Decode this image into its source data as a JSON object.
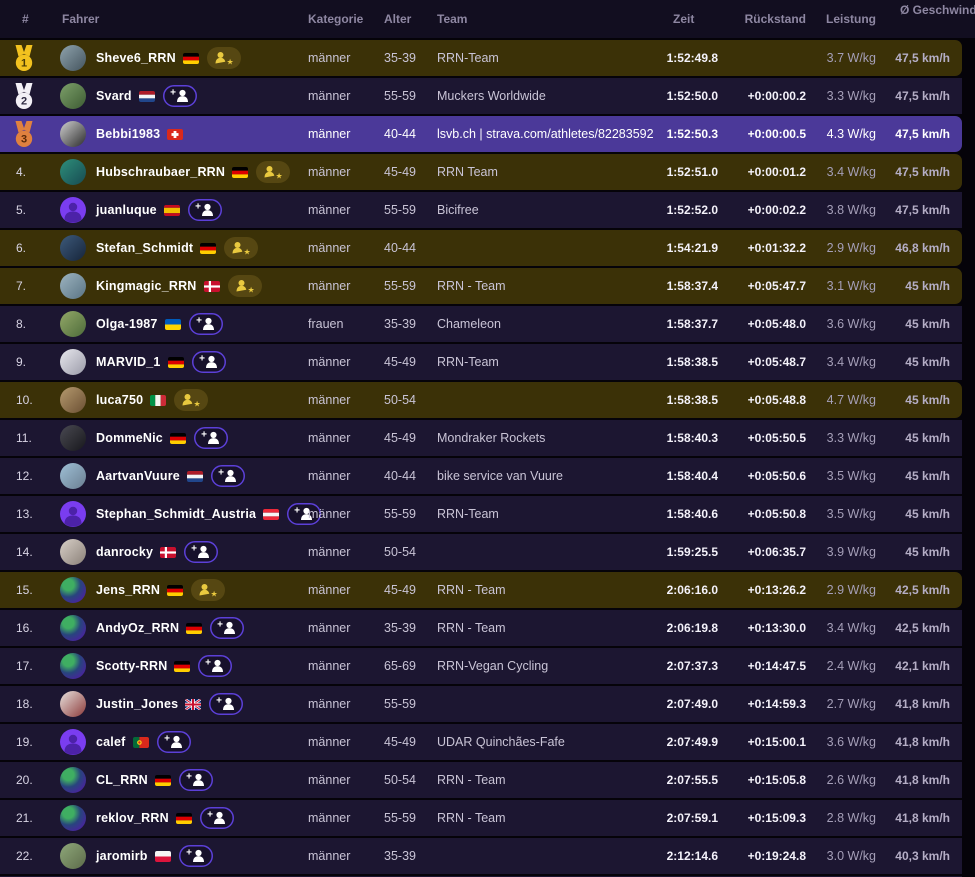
{
  "colors": {
    "accent_purple": "#5c40d8",
    "row_default": "#1c1631",
    "row_followed": "#3b3107",
    "row_self": "#4b3999",
    "badge_gold": "#e9c93f",
    "badge_gold_bg": "#564712",
    "medal_gold": "#f2c21f",
    "medal_silver": "#f2f0f6",
    "medal_bronze": "#e0813f",
    "default_avatar": "#7a3df0"
  },
  "table": {
    "columns": [
      {
        "key": "rank",
        "label": "#"
      },
      {
        "key": "fahrer",
        "label": "Fahrer"
      },
      {
        "key": "kategorie",
        "label": "Kategorie"
      },
      {
        "key": "alter",
        "label": "Alter"
      },
      {
        "key": "team",
        "label": "Team"
      },
      {
        "key": "zeit",
        "label": "Zeit"
      },
      {
        "key": "rueckstand",
        "label": "Rückstand"
      },
      {
        "key": "leistung",
        "label": "Leistung"
      },
      {
        "key": "geschwindigkeit",
        "label": "Ø Geschwindigkeit"
      }
    ],
    "rows": [
      {
        "rank_display": "1",
        "medal": "gold",
        "name": "Sheve6_RRN",
        "flag": "de",
        "badge": "following",
        "avatar": {
          "type": "photo",
          "c1": "#8fa3ad",
          "c2": "#44545e"
        },
        "kategorie": "männer",
        "alter": "35-39",
        "team": "RRN-Team",
        "zeit": "1:52:49.8",
        "rueckstand": "",
        "leistung": "3.7 W/kg",
        "geschwindigkeit": "47,5 km/h",
        "highlight": "followed"
      },
      {
        "rank_display": "2",
        "medal": "silver",
        "name": "Svard",
        "flag": "nl",
        "badge": "add",
        "avatar": {
          "type": "photo",
          "c1": "#7da06a",
          "c2": "#3d5c33"
        },
        "kategorie": "männer",
        "alter": "55-59",
        "team": "Muckers Worldwide",
        "zeit": "1:52:50.0",
        "rueckstand": "+0:00:00.2",
        "leistung": "3.3 W/kg",
        "geschwindigkeit": "47,5 km/h",
        "highlight": "none"
      },
      {
        "rank_display": "3",
        "medal": "bronze",
        "name": "Bebbi1983",
        "flag": "ch",
        "badge": "none",
        "avatar": {
          "type": "photo",
          "c1": "#cfcfcf",
          "c2": "#2b2b2b"
        },
        "kategorie": "männer",
        "alter": "40-44",
        "team": "lsvb.ch | strava.com/athletes/82283592",
        "zeit": "1:52:50.3",
        "rueckstand": "+0:00:00.5",
        "leistung": "4.3 W/kg",
        "geschwindigkeit": "47,5 km/h",
        "highlight": "self"
      },
      {
        "rank_display": "4.",
        "medal": null,
        "name": "Hubschraubaer_RRN",
        "flag": "de",
        "badge": "following",
        "avatar": {
          "type": "photo",
          "c1": "#2e8f7a",
          "c2": "#174a52"
        },
        "kategorie": "männer",
        "alter": "45-49",
        "team": "RRN Team",
        "zeit": "1:52:51.0",
        "rueckstand": "+0:00:01.2",
        "leistung": "3.4 W/kg",
        "geschwindigkeit": "47,5 km/h",
        "highlight": "followed"
      },
      {
        "rank_display": "5.",
        "medal": null,
        "name": "juanluque",
        "flag": "es",
        "badge": "add",
        "avatar": {
          "type": "default"
        },
        "kategorie": "männer",
        "alter": "55-59",
        "team": "Bicifree",
        "zeit": "1:52:52.0",
        "rueckstand": "+0:00:02.2",
        "leistung": "3.8 W/kg",
        "geschwindigkeit": "47,5 km/h",
        "highlight": "none"
      },
      {
        "rank_display": "6.",
        "medal": null,
        "name": "Stefan_Schmidt",
        "flag": "de",
        "badge": "following",
        "avatar": {
          "type": "photo",
          "c1": "#3d5a7a",
          "c2": "#16243a"
        },
        "kategorie": "männer",
        "alter": "40-44",
        "team": "",
        "zeit": "1:54:21.9",
        "rueckstand": "+0:01:32.2",
        "leistung": "2.9 W/kg",
        "geschwindigkeit": "46,8 km/h",
        "highlight": "followed"
      },
      {
        "rank_display": "7.",
        "medal": null,
        "name": "Kingmagic_RRN",
        "flag": "dk",
        "badge": "following",
        "avatar": {
          "type": "photo",
          "c1": "#9db4c0",
          "c2": "#5a7484"
        },
        "kategorie": "männer",
        "alter": "55-59",
        "team": "RRN - Team",
        "zeit": "1:58:37.4",
        "rueckstand": "+0:05:47.7",
        "leistung": "3.1 W/kg",
        "geschwindigkeit": "45 km/h",
        "highlight": "followed"
      },
      {
        "rank_display": "8.",
        "medal": null,
        "name": "Olga-1987",
        "flag": "ua",
        "badge": "add",
        "avatar": {
          "type": "photo",
          "c1": "#93a868",
          "c2": "#4d6b3a"
        },
        "kategorie": "frauen",
        "alter": "35-39",
        "team": "Chameleon",
        "zeit": "1:58:37.7",
        "rueckstand": "+0:05:48.0",
        "leistung": "3.6 W/kg",
        "geschwindigkeit": "45 km/h",
        "highlight": "none"
      },
      {
        "rank_display": "9.",
        "medal": null,
        "name": "MARVID_1",
        "flag": "de",
        "badge": "add",
        "avatar": {
          "type": "photo",
          "c1": "#e8e8ee",
          "c2": "#9a9aa8"
        },
        "kategorie": "männer",
        "alter": "45-49",
        "team": "RRN-Team",
        "zeit": "1:58:38.5",
        "rueckstand": "+0:05:48.7",
        "leistung": "3.4 W/kg",
        "geschwindigkeit": "45 km/h",
        "highlight": "none"
      },
      {
        "rank_display": "10.",
        "medal": null,
        "name": "luca750",
        "flag": "it",
        "badge": "following",
        "avatar": {
          "type": "photo",
          "c1": "#b59a6e",
          "c2": "#6b4f33"
        },
        "kategorie": "männer",
        "alter": "50-54",
        "team": "",
        "zeit": "1:58:38.5",
        "rueckstand": "+0:05:48.8",
        "leistung": "4.7 W/kg",
        "geschwindigkeit": "45 km/h",
        "highlight": "followed"
      },
      {
        "rank_display": "11.",
        "medal": null,
        "name": "DommeNic",
        "flag": "de",
        "badge": "add",
        "avatar": {
          "type": "photo",
          "c1": "#4a4a52",
          "c2": "#17171c"
        },
        "kategorie": "männer",
        "alter": "45-49",
        "team": "Mondraker Rockets",
        "zeit": "1:58:40.3",
        "rueckstand": "+0:05:50.5",
        "leistung": "3.3 W/kg",
        "geschwindigkeit": "45 km/h",
        "highlight": "none"
      },
      {
        "rank_display": "12.",
        "medal": null,
        "name": "AartvanVuure",
        "flag": "nl",
        "badge": "add",
        "avatar": {
          "type": "photo",
          "c1": "#9fc0d6",
          "c2": "#6b7f92"
        },
        "kategorie": "männer",
        "alter": "40-44",
        "team": "bike service van Vuure",
        "zeit": "1:58:40.4",
        "rueckstand": "+0:05:50.6",
        "leistung": "3.5 W/kg",
        "geschwindigkeit": "45 km/h",
        "highlight": "none"
      },
      {
        "rank_display": "13.",
        "medal": null,
        "name": "Stephan_Schmidt_Austria",
        "flag": "at",
        "badge": "add",
        "avatar": {
          "type": "default"
        },
        "kategorie": "männer",
        "alter": "55-59",
        "team": "RRN-Team",
        "zeit": "1:58:40.6",
        "rueckstand": "+0:05:50.8",
        "leistung": "3.5 W/kg",
        "geschwindigkeit": "45 km/h",
        "highlight": "none"
      },
      {
        "rank_display": "14.",
        "medal": null,
        "name": "danrocky",
        "flag": "dk",
        "badge": "add",
        "avatar": {
          "type": "photo",
          "c1": "#d8d0c8",
          "c2": "#8a8078"
        },
        "kategorie": "männer",
        "alter": "50-54",
        "team": "",
        "zeit": "1:59:25.5",
        "rueckstand": "+0:06:35.7",
        "leistung": "3.9 W/kg",
        "geschwindigkeit": "45 km/h",
        "highlight": "none"
      },
      {
        "rank_display": "15.",
        "medal": null,
        "name": "Jens_RRN",
        "flag": "de",
        "badge": "following",
        "avatar": {
          "type": "rrn"
        },
        "kategorie": "männer",
        "alter": "45-49",
        "team": "RRN - Team",
        "zeit": "2:06:16.0",
        "rueckstand": "+0:13:26.2",
        "leistung": "2.9 W/kg",
        "geschwindigkeit": "42,5 km/h",
        "highlight": "followed"
      },
      {
        "rank_display": "16.",
        "medal": null,
        "name": "AndyOz_RRN",
        "flag": "de",
        "badge": "add",
        "avatar": {
          "type": "rrn"
        },
        "kategorie": "männer",
        "alter": "35-39",
        "team": "RRN - Team",
        "zeit": "2:06:19.8",
        "rueckstand": "+0:13:30.0",
        "leistung": "3.4 W/kg",
        "geschwindigkeit": "42,5 km/h",
        "highlight": "none"
      },
      {
        "rank_display": "17.",
        "medal": null,
        "name": "Scotty-RRN",
        "flag": "de",
        "badge": "add",
        "avatar": {
          "type": "rrn"
        },
        "kategorie": "männer",
        "alter": "65-69",
        "team": "RRN-Vegan Cycling",
        "zeit": "2:07:37.3",
        "rueckstand": "+0:14:47.5",
        "leistung": "2.4 W/kg",
        "geschwindigkeit": "42,1 km/h",
        "highlight": "none"
      },
      {
        "rank_display": "18.",
        "medal": null,
        "name": "Justin_Jones",
        "flag": "gb",
        "badge": "add",
        "avatar": {
          "type": "photo",
          "c1": "#e8e2de",
          "c2": "#8c3a3a"
        },
        "kategorie": "männer",
        "alter": "55-59",
        "team": "",
        "zeit": "2:07:49.0",
        "rueckstand": "+0:14:59.3",
        "leistung": "2.7 W/kg",
        "geschwindigkeit": "41,8 km/h",
        "highlight": "none"
      },
      {
        "rank_display": "19.",
        "medal": null,
        "name": "calef",
        "flag": "pt",
        "badge": "add",
        "avatar": {
          "type": "default"
        },
        "kategorie": "männer",
        "alter": "45-49",
        "team": "UDAR Quinchães-Fafe",
        "zeit": "2:07:49.9",
        "rueckstand": "+0:15:00.1",
        "leistung": "3.6 W/kg",
        "geschwindigkeit": "41,8 km/h",
        "highlight": "none"
      },
      {
        "rank_display": "20.",
        "medal": null,
        "name": "CL_RRN",
        "flag": "de",
        "badge": "add",
        "avatar": {
          "type": "rrn"
        },
        "kategorie": "männer",
        "alter": "50-54",
        "team": "RRN - Team",
        "zeit": "2:07:55.5",
        "rueckstand": "+0:15:05.8",
        "leistung": "2.6 W/kg",
        "geschwindigkeit": "41,8 km/h",
        "highlight": "none"
      },
      {
        "rank_display": "21.",
        "medal": null,
        "name": "reklov_RRN",
        "flag": "de",
        "badge": "add",
        "avatar": {
          "type": "rrn"
        },
        "kategorie": "männer",
        "alter": "55-59",
        "team": "RRN - Team",
        "zeit": "2:07:59.1",
        "rueckstand": "+0:15:09.3",
        "leistung": "2.8 W/kg",
        "geschwindigkeit": "41,8 km/h",
        "highlight": "none"
      },
      {
        "rank_display": "22.",
        "medal": null,
        "name": "jaromirb",
        "flag": "pl",
        "badge": "add",
        "avatar": {
          "type": "photo",
          "c1": "#8fa87a",
          "c2": "#5c6b4a"
        },
        "kategorie": "männer",
        "alter": "35-39",
        "team": "",
        "zeit": "2:12:14.6",
        "rueckstand": "+0:19:24.8",
        "leistung": "3.0 W/kg",
        "geschwindigkeit": "40,3 km/h",
        "highlight": "none"
      }
    ]
  }
}
